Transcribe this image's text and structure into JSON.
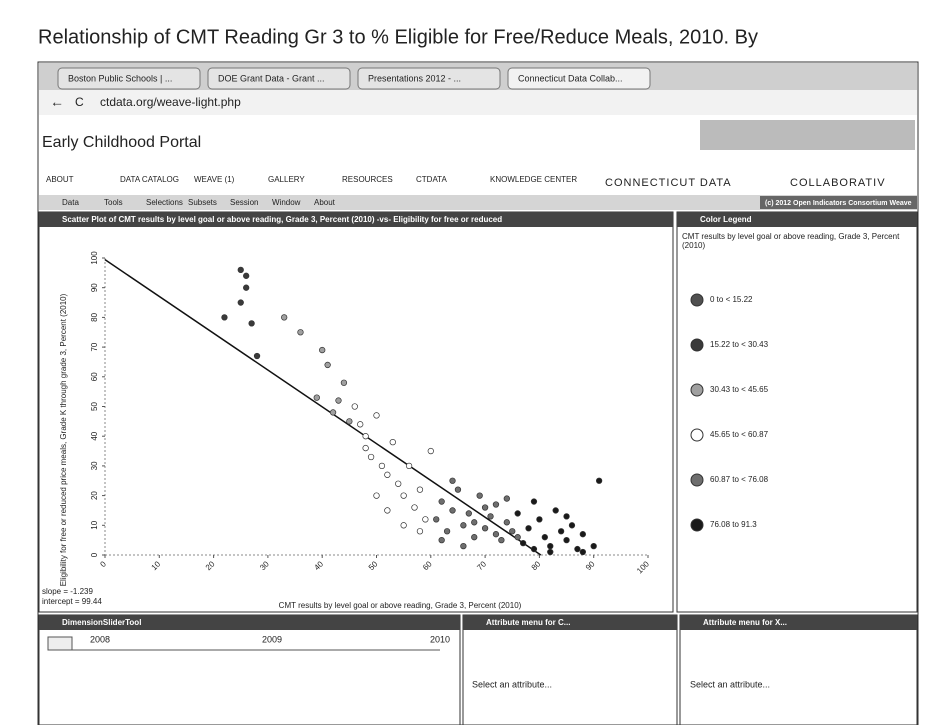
{
  "page": {
    "title": "Relationship of  CMT Reading Gr 3 to % Eligible for Free/Reduce Meals, 2010. By"
  },
  "browser": {
    "tabs": [
      "Boston Public Schools | ...",
      "DOE Grant Data - Grant ...",
      "Presentations 2012 - ...",
      "Connecticut Data Collab..."
    ],
    "url": "ctdata.org/weave-light.php"
  },
  "portal": {
    "name": "Early Childhood Portal",
    "nav": [
      "ABOUT",
      "DATA CATALOG",
      "WEAVE (1)",
      "GALLERY",
      "RESOURCES",
      "CTDATA",
      "KNOWLEDGE CENTER"
    ],
    "brand": "CONNECTICUT DATA",
    "brand2": "COLLABORATIV",
    "menu": [
      "Data",
      "Tools",
      "Selections",
      "Subsets",
      "Session",
      "Window",
      "About"
    ],
    "credit": "(c) 2012 Open Indicators Consortium Weave"
  },
  "chart_data": {
    "type": "scatter",
    "title": "Scatter Plot of CMT results by level goal or above reading, Grade 3, Percent (2010) -vs- Eligibility for free or reduced",
    "x_label": "CMT results by level goal or above reading, Grade 3, Percent (2010)",
    "y_label": "Eligibility for free or reduced price meals, Grade K through grade 3, Percent (2010)",
    "xlim": [
      0,
      100
    ],
    "ylim": [
      0,
      100
    ],
    "xticks": [
      0,
      10,
      20,
      30,
      40,
      50,
      60,
      70,
      80,
      90,
      100
    ],
    "yticks": [
      0,
      10,
      20,
      30,
      40,
      50,
      60,
      70,
      80,
      90,
      100
    ],
    "regression": {
      "slope": -1.239,
      "intercept": 99.44,
      "slope_label": "slope = -1.239",
      "intercept_label": "intercept = 99.44"
    },
    "legend_title": "Color Legend",
    "legend_subtitle": "CMT results by level goal or above reading, Grade 3, Percent (2010)",
    "series": [
      {
        "name": "0 to < 15.22",
        "color": "#505050",
        "x": [],
        "values": []
      },
      {
        "name": "15.22 to < 30.43",
        "color": "#3a3a3a",
        "x": [
          25,
          26,
          26,
          25,
          22,
          27,
          28
        ],
        "values": [
          96,
          94,
          90,
          85,
          80,
          78,
          67
        ]
      },
      {
        "name": "30.43 to < 45.65",
        "color": "#a0a0a0",
        "x": [
          33,
          36,
          40,
          41,
          44,
          43,
          45,
          42,
          39
        ],
        "values": [
          80,
          75,
          69,
          64,
          58,
          52,
          45,
          48,
          53
        ]
      },
      {
        "name": "45.65 to < 60.87",
        "color": "#ffffff",
        "x": [
          46,
          47,
          48,
          49,
          50,
          51,
          52,
          53,
          54,
          55,
          56,
          57,
          58,
          59,
          60,
          48,
          50,
          52,
          55,
          58
        ],
        "values": [
          50,
          44,
          40,
          33,
          47,
          30,
          27,
          38,
          24,
          20,
          30,
          16,
          22,
          12,
          35,
          36,
          20,
          15,
          10,
          8
        ]
      },
      {
        "name": "60.87 to < 76.08",
        "color": "#6e6e6e",
        "x": [
          61,
          62,
          63,
          64,
          65,
          66,
          67,
          68,
          69,
          70,
          71,
          72,
          73,
          74,
          75,
          62,
          64,
          66,
          68,
          70,
          72,
          74,
          76
        ],
        "values": [
          12,
          18,
          8,
          15,
          22,
          10,
          14,
          6,
          20,
          9,
          13,
          17,
          5,
          11,
          8,
          5,
          25,
          3,
          11,
          16,
          7,
          19,
          6
        ]
      },
      {
        "name": "76.08 to 91.3",
        "color": "#1a1a1a",
        "x": [
          77,
          78,
          79,
          80,
          81,
          82,
          83,
          84,
          85,
          86,
          87,
          88,
          90,
          91,
          79,
          82,
          85,
          88,
          76
        ],
        "values": [
          4,
          9,
          2,
          12,
          6,
          3,
          15,
          8,
          5,
          10,
          2,
          7,
          3,
          25,
          18,
          1,
          13,
          1,
          14
        ]
      }
    ]
  },
  "panels": {
    "slider_title": "DimensionSliderTool",
    "slider_years": [
      "2008",
      "2009",
      "2010"
    ],
    "attr1_title": "Attribute menu for C...",
    "attr2_title": "Attribute menu for X...",
    "attr_prompt": "Select an attribute..."
  }
}
